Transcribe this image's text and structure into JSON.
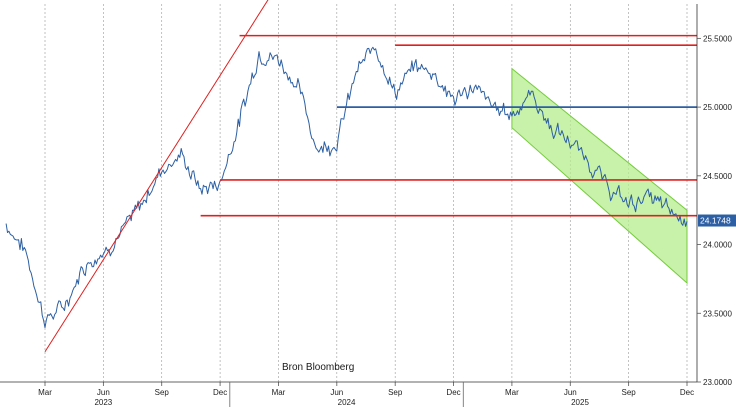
{
  "chart_data": {
    "type": "line",
    "title": "",
    "source": "Bron Bloomberg",
    "x_ticks": [
      "Mar",
      "Jun",
      "Sep",
      "Dec",
      "Mar",
      "Jun",
      "Sep",
      "Dec",
      "Mar",
      "Jun",
      "Sep",
      "Dec"
    ],
    "x_years": [
      "2023",
      "2024",
      "2025"
    ],
    "x_range": [
      "2023-01",
      "2025-12"
    ],
    "y_ticks": [
      "23.0000",
      "23.5000",
      "24.0000",
      "24.5000",
      "25.0000",
      "25.5000"
    ],
    "ylim": [
      23.0,
      25.75
    ],
    "last_value": "24.1748",
    "grid": "vertical dashed",
    "colors": {
      "series": "#2c5fa3",
      "support_resistance": "#e02020",
      "trend": "#e02020",
      "mid_level": "#2c5fa3",
      "channel_fill": "#b5ec8c",
      "channel_edge": "#74cc3c",
      "last_badge": "#2c5fa3"
    },
    "series": [
      {
        "values_monthly": [
          [
            "2023-01",
            24.15
          ],
          [
            "2023-02",
            23.95
          ],
          [
            "2023-03",
            23.45
          ],
          [
            "2023-04",
            23.55
          ],
          [
            "2023-05",
            23.85
          ],
          [
            "2023-06",
            23.95
          ],
          [
            "2023-07",
            24.1
          ],
          [
            "2023-08",
            24.3
          ],
          [
            "2023-09",
            24.55
          ],
          [
            "2023-10",
            24.65
          ],
          [
            "2023-11",
            24.4
          ],
          [
            "2023-12",
            24.45
          ],
          [
            "2024-01",
            24.9
          ],
          [
            "2024-02",
            25.4
          ],
          [
            "2024-03",
            25.35
          ],
          [
            "2024-04",
            25.15
          ],
          [
            "2024-05",
            24.7
          ],
          [
            "2024-06",
            24.75
          ],
          [
            "2024-07",
            25.25
          ],
          [
            "2024-08",
            25.45
          ],
          [
            "2024-09",
            25.1
          ],
          [
            "2024-10",
            25.3
          ],
          [
            "2024-11",
            25.25
          ],
          [
            "2024-12",
            25.05
          ],
          [
            "2025-01",
            25.15
          ],
          [
            "2025-02",
            25.0
          ],
          [
            "2025-03",
            24.95
          ],
          [
            "2025-04",
            25.1
          ],
          [
            "2025-05",
            24.85
          ],
          [
            "2025-06",
            24.75
          ],
          [
            "2025-07",
            24.6
          ],
          [
            "2025-08",
            24.4
          ],
          [
            "2025-09",
            24.3
          ],
          [
            "2025-10",
            24.35
          ],
          [
            "2025-11",
            24.25
          ],
          [
            "2025-12",
            24.17
          ]
        ]
      }
    ],
    "annotations": {
      "horizontal_red": [
        {
          "level": 25.52,
          "from": "2024-01",
          "to": "2025-12"
        },
        {
          "level": 25.45,
          "from": "2024-09",
          "to": "2025-12"
        },
        {
          "level": 24.47,
          "from": "2023-12",
          "to": "2025-12"
        },
        {
          "level": 24.21,
          "from": "2023-11",
          "to": "2025-12"
        }
      ],
      "horizontal_blue": [
        {
          "level": 25.0,
          "from": "2024-06",
          "to": "2025-12"
        }
      ],
      "trendline": {
        "start": [
          "2023-03",
          23.22
        ],
        "end": [
          "2024-03",
          25.9
        ]
      },
      "channel": {
        "upper": [
          [
            "2025-03",
            25.28
          ],
          [
            "2025-12",
            24.25
          ]
        ],
        "lower": [
          [
            "2025-03",
            24.85
          ],
          [
            "2025-12",
            23.72
          ]
        ]
      }
    }
  }
}
